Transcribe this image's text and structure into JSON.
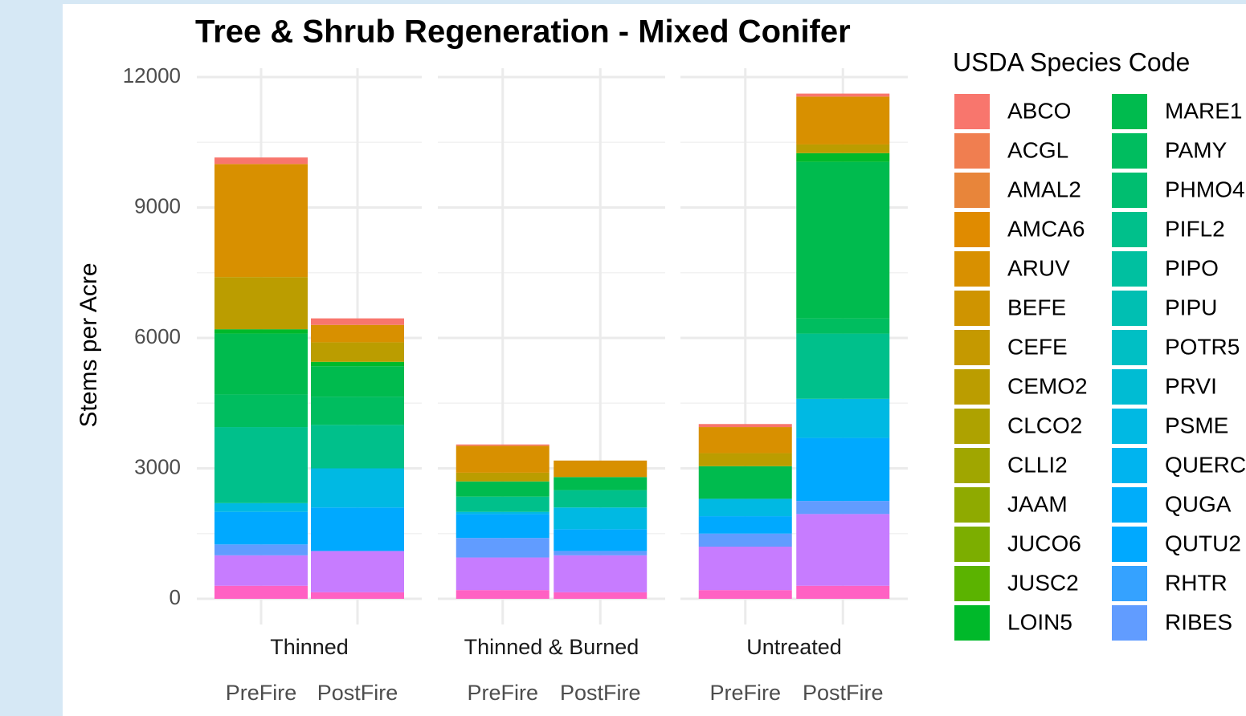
{
  "chart_data": {
    "type": "stacked_bar",
    "title": "Tree & Shrub Regeneration - Mixed Conifer",
    "ylabel": "Stems per Acre",
    "legend_title": "USDA Species Code",
    "legend": "right",
    "grid": true,
    "facets": [
      "Thinned",
      "Thinned & Burned",
      "Untreated"
    ],
    "categories": [
      "PreFire",
      "PostFire",
      "PreFire",
      "PostFire",
      "PreFire",
      "PostFire"
    ],
    "ylim": [
      0,
      12000
    ],
    "yticks": [
      0,
      3000,
      6000,
      9000,
      12000
    ],
    "series": [
      {
        "name": "ABCO",
        "color": "#F8766D",
        "values": [
          150,
          150,
          30,
          0,
          70,
          70
        ]
      },
      {
        "name": "ACGL",
        "color": "#F07E50",
        "values": [
          0,
          0,
          0,
          0,
          0,
          0
        ]
      },
      {
        "name": "AMAL2",
        "color": "#E8853A",
        "values": [
          0,
          0,
          0,
          0,
          0,
          0
        ]
      },
      {
        "name": "AMCA6",
        "color": "#E08B00",
        "values": [
          0,
          0,
          0,
          0,
          0,
          0
        ]
      },
      {
        "name": "ARUV",
        "color": "#D89000",
        "values": [
          2600,
          400,
          620,
          380,
          600,
          1100
        ]
      },
      {
        "name": "BEFE",
        "color": "#CF9400",
        "values": [
          0,
          0,
          0,
          0,
          0,
          0
        ]
      },
      {
        "name": "CEFE",
        "color": "#C59900",
        "values": [
          0,
          0,
          0,
          0,
          0,
          0
        ]
      },
      {
        "name": "CEMO2",
        "color": "#BB9D00",
        "values": [
          1200,
          450,
          200,
          0,
          300,
          200
        ]
      },
      {
        "name": "CLCO2",
        "color": "#AEA200",
        "values": [
          0,
          0,
          0,
          0,
          0,
          0
        ]
      },
      {
        "name": "CLLI2",
        "color": "#A0A600",
        "values": [
          0,
          0,
          0,
          0,
          0,
          0
        ]
      },
      {
        "name": "JAAM",
        "color": "#8FAA00",
        "values": [
          0,
          0,
          0,
          0,
          0,
          0
        ]
      },
      {
        "name": "JUCO6",
        "color": "#7CAE00",
        "values": [
          0,
          0,
          0,
          0,
          0,
          0
        ]
      },
      {
        "name": "JUSC2",
        "color": "#5BB300",
        "values": [
          0,
          0,
          0,
          0,
          0,
          0
        ]
      },
      {
        "name": "LOIN5",
        "color": "#00B92A",
        "values": [
          100,
          100,
          0,
          0,
          0,
          200
        ]
      },
      {
        "name": "MARE1",
        "color": "#00BB4E",
        "values": [
          1400,
          700,
          350,
          300,
          750,
          3600
        ]
      },
      {
        "name": "PAMY",
        "color": "#00BD5F",
        "values": [
          750,
          650,
          0,
          0,
          0,
          350
        ]
      },
      {
        "name": "PHMO4",
        "color": "#00BE70",
        "values": [
          0,
          0,
          0,
          0,
          0,
          0
        ]
      },
      {
        "name": "PIFL2",
        "color": "#00C08B",
        "values": [
          1750,
          1000,
          350,
          400,
          0,
          1500
        ]
      },
      {
        "name": "PIPO",
        "color": "#00C0A0",
        "values": [
          0,
          0,
          0,
          0,
          0,
          0
        ]
      },
      {
        "name": "PIPU",
        "color": "#00BFB2",
        "values": [
          0,
          0,
          0,
          0,
          0,
          0
        ]
      },
      {
        "name": "POTR5",
        "color": "#00BFC4",
        "values": [
          0,
          0,
          0,
          0,
          0,
          0
        ]
      },
      {
        "name": "PRVI",
        "color": "#00BCD3",
        "values": [
          0,
          0,
          0,
          0,
          0,
          0
        ]
      },
      {
        "name": "PSME",
        "color": "#00B9E3",
        "values": [
          200,
          900,
          50,
          500,
          400,
          900
        ]
      },
      {
        "name": "QUERC",
        "color": "#00B4EF",
        "values": [
          0,
          0,
          0,
          0,
          0,
          0
        ]
      },
      {
        "name": "QUGA",
        "color": "#00ADFA",
        "values": [
          0,
          0,
          0,
          0,
          0,
          0
        ]
      },
      {
        "name": "QUTU2",
        "color": "#00A9FF",
        "values": [
          750,
          1000,
          550,
          500,
          400,
          1450
        ]
      },
      {
        "name": "RHTR",
        "color": "#35A2FF",
        "values": [
          0,
          0,
          0,
          0,
          0,
          0
        ]
      },
      {
        "name": "RIBES",
        "color": "#619CFF",
        "values": [
          250,
          0,
          450,
          100,
          300,
          300
        ]
      },
      {
        "color": "#C77CFF",
        "values": [
          700,
          950,
          750,
          850,
          1000,
          1650
        ]
      },
      {
        "color": "#FF61C3",
        "values": [
          300,
          150,
          200,
          150,
          200,
          300
        ]
      }
    ]
  }
}
